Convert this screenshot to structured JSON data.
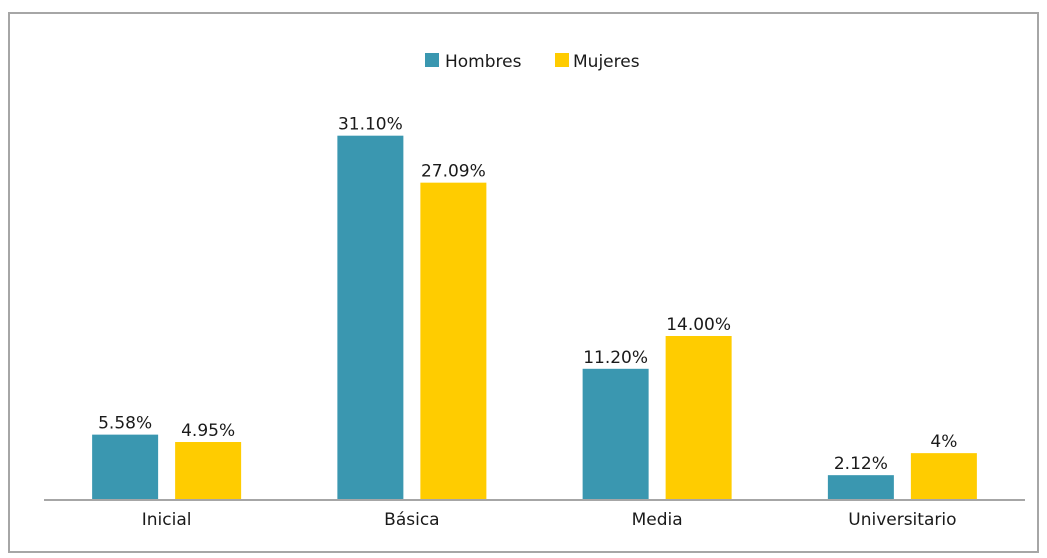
{
  "chart_data": {
    "type": "bar",
    "categories": [
      "Inicial",
      "Básica",
      "Media",
      "Universitario"
    ],
    "series": [
      {
        "name": "Hombres",
        "values": [
          5.58,
          31.1,
          11.2,
          2.12
        ],
        "labels": [
          "5.58%",
          "31.10%",
          "11.20%",
          "2.12%"
        ],
        "color": "#3a97b0"
      },
      {
        "name": "Mujeres",
        "values": [
          4.95,
          27.09,
          14.0,
          4
        ],
        "labels": [
          "4.95%",
          "27.09%",
          "14.00%",
          "4%"
        ],
        "color": "#ffcc00"
      }
    ],
    "ylim": [
      0,
      35
    ],
    "legend_position": "top-center",
    "grid": false,
    "axis_color": "#a6a6a6"
  }
}
